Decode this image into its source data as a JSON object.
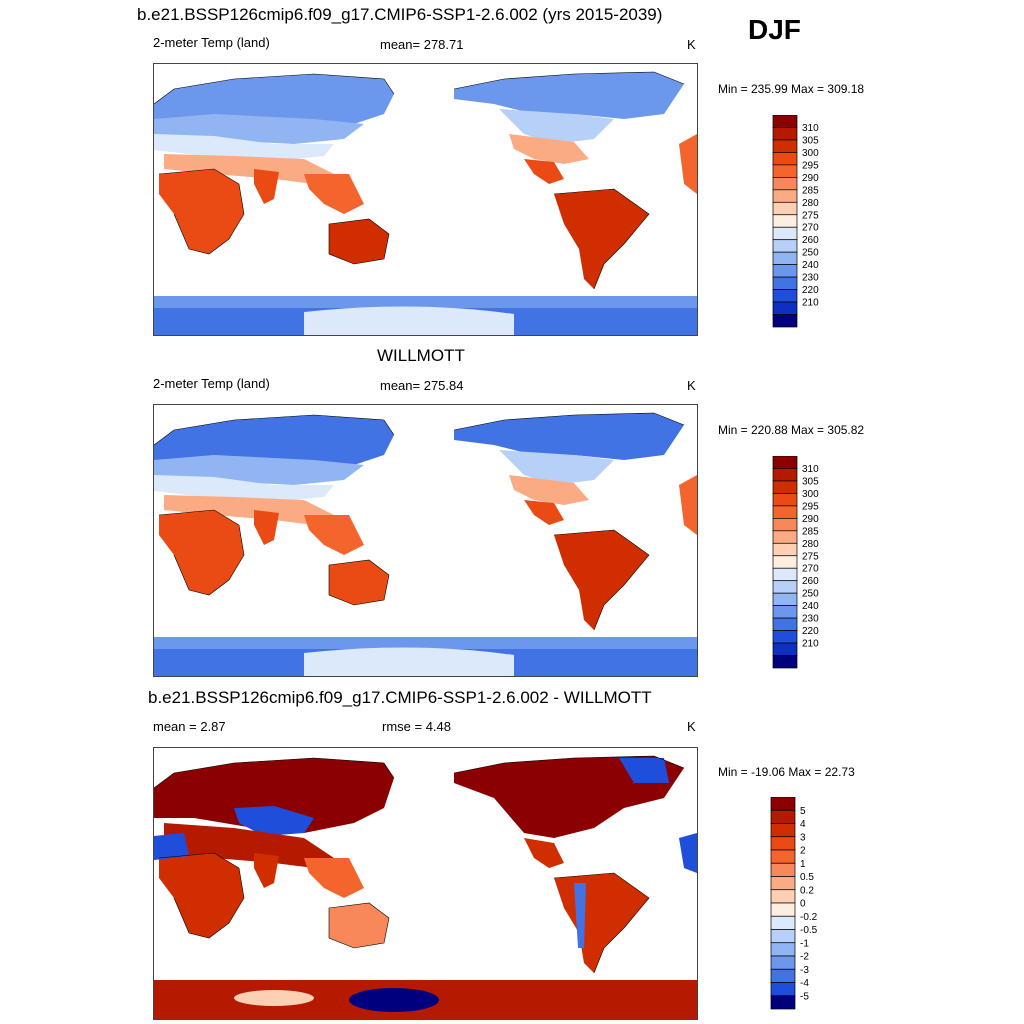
{
  "season": "DJF",
  "panels": [
    {
      "title": "b.e21.BSSP126cmip6.f09_g17.CMIP6-SSP1-2.6.002 (yrs 2015-2039)",
      "left": "2-meter Temp (land)",
      "center": "mean= 278.71",
      "units": "K",
      "minmax": "Min = 235.99 Max = 309.18"
    },
    {
      "title": "WILLMOTT",
      "left": "2-meter Temp (land)",
      "center": "mean= 275.84",
      "units": "K",
      "minmax": "Min = 220.88 Max = 305.82"
    },
    {
      "title": "b.e21.BSSP126cmip6.f09_g17.CMIP6-SSP1-2.6.002 - WILLMOTT",
      "left": "mean =   2.87",
      "center": "rmse =   4.48",
      "units": "K",
      "minmax": "Min = -19.06 Max =  22.73"
    }
  ],
  "colorbars": {
    "temp": {
      "labels": [
        "310",
        "305",
        "300",
        "295",
        "290",
        "285",
        "280",
        "275",
        "270",
        "260",
        "250",
        "240",
        "230",
        "220",
        "210"
      ],
      "colors": [
        "#8b0000",
        "#b51a00",
        "#d12e00",
        "#ea4a14",
        "#f4652d",
        "#f8875a",
        "#fbab84",
        "#fdd0b4",
        "#fdeee0",
        "#dbe9fb",
        "#b7d0f7",
        "#91b5f2",
        "#6b97ec",
        "#4273e4",
        "#1f4fda",
        "#0d2fc4",
        "#00007f"
      ]
    },
    "diff": {
      "labels": [
        "5",
        "4",
        "3",
        "2",
        "1",
        "0.5",
        "0.2",
        "0",
        "-0.2",
        "-0.5",
        "-1",
        "-2",
        "-3",
        "-4",
        "-5"
      ],
      "colors": [
        "#8b0000",
        "#b51a00",
        "#d12e00",
        "#ea4a14",
        "#f4652d",
        "#f8875a",
        "#fbab84",
        "#fdd0b4",
        "#fdeee0",
        "#dbe9fb",
        "#b7d0f7",
        "#91b5f2",
        "#6b97ec",
        "#4273e4",
        "#1f4fda",
        "#00007f"
      ]
    }
  },
  "chart_data": [
    {
      "type": "heatmap",
      "title": "b.e21.BSSP126cmip6.f09_g17.CMIP6-SSP1-2.6.002 (yrs 2015-2039)",
      "subtitle": "2-meter Temp (land)",
      "mean": 278.71,
      "units": "K",
      "min": 235.99,
      "max": 309.18,
      "levels": [
        210,
        220,
        230,
        240,
        250,
        260,
        270,
        275,
        280,
        285,
        290,
        295,
        300,
        305,
        310
      ]
    },
    {
      "type": "heatmap",
      "title": "WILLMOTT",
      "subtitle": "2-meter Temp (land)",
      "mean": 275.84,
      "units": "K",
      "min": 220.88,
      "max": 305.82,
      "levels": [
        210,
        220,
        230,
        240,
        250,
        260,
        270,
        275,
        280,
        285,
        290,
        295,
        300,
        305,
        310
      ]
    },
    {
      "type": "heatmap",
      "title": "b.e21.BSSP126cmip6.f09_g17.CMIP6-SSP1-2.6.002 - WILLMOTT",
      "mean": 2.87,
      "rmse": 4.48,
      "units": "K",
      "min": -19.06,
      "max": 22.73,
      "levels": [
        -5,
        -4,
        -3,
        -2,
        -1,
        -0.5,
        -0.2,
        0,
        0.2,
        0.5,
        1,
        2,
        3,
        4,
        5
      ]
    }
  ]
}
